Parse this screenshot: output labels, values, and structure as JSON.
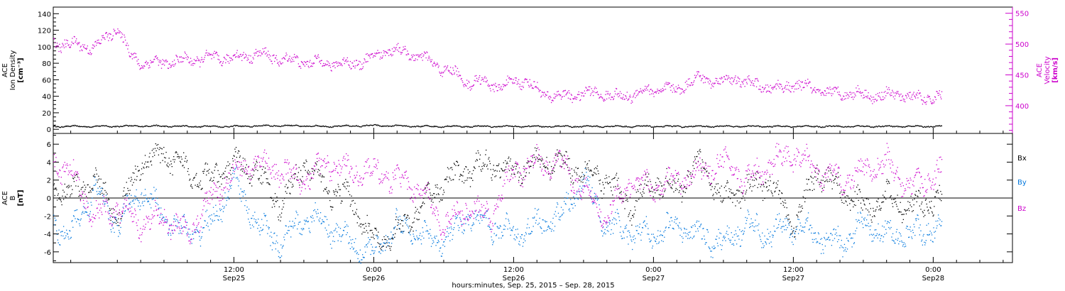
{
  "figure": {
    "xlabel": "hours:minutes, Sep. 25, 2015 – Sep. 28, 2015",
    "x_ticks": [
      {
        "hours": 12,
        "line1": "12:00",
        "line2": "Sep25"
      },
      {
        "hours": 24,
        "line1": "0:00",
        "line2": "Sep26"
      },
      {
        "hours": 36,
        "line1": "12:00",
        "line2": "Sep26"
      },
      {
        "hours": 48,
        "line1": "0:00",
        "line2": "Sep27"
      },
      {
        "hours": 60,
        "line1": "12:00",
        "line2": "Sep27"
      },
      {
        "hours": 72,
        "line1": "0:00",
        "line2": "Sep28"
      }
    ],
    "x_range_hours": [
      -3.5,
      78.8
    ],
    "colors": {
      "black": "#000000",
      "magenta": "#cc00cc",
      "blue": "#0077dd"
    }
  },
  "chart_data": [
    {
      "type": "scatter",
      "title": "",
      "x_unit": "hours from Sep 25 00:00",
      "ylim_left": [
        -5,
        148
      ],
      "ylim_right": [
        355,
        560
      ],
      "left_ticks": [
        0,
        20,
        40,
        60,
        80,
        100,
        120,
        140
      ],
      "right_ticks": [
        400,
        450,
        500,
        550
      ],
      "left_label": [
        "ACE",
        "Ion Density",
        "[cm⁻³]"
      ],
      "right_label": [
        "ACE",
        "Velocity",
        "[km/s]"
      ],
      "series": [
        {
          "axis": "left",
          "color": "#000000",
          "x": [
            -3.5,
            0,
            4,
            8,
            12,
            16,
            20,
            24,
            28,
            32,
            36,
            40,
            44,
            48,
            52,
            56,
            60,
            64,
            68,
            72.7
          ],
          "values": [
            4,
            4,
            4.5,
            4,
            4,
            5,
            4,
            5,
            4,
            4,
            4,
            4,
            4,
            4,
            4,
            4,
            4,
            4,
            4,
            4
          ]
        },
        {
          "axis": "right",
          "color": "#cc00cc",
          "x": [
            -3.5,
            -2,
            -1,
            0,
            1,
            2,
            3,
            4,
            6,
            8,
            10,
            12,
            14,
            16,
            18,
            20,
            22,
            24,
            25,
            26,
            27,
            28,
            29,
            30,
            31,
            32,
            33,
            34,
            35,
            36,
            37,
            38,
            39,
            40,
            41,
            42,
            43,
            44,
            45,
            46,
            47,
            48,
            49,
            50,
            51,
            52,
            53,
            54,
            55,
            56,
            57,
            58,
            59,
            60,
            61,
            62,
            63,
            64,
            65,
            66,
            67,
            68,
            69,
            70,
            71,
            72.7
          ],
          "values": [
            502,
            500,
            498,
            495,
            510,
            528,
            485,
            470,
            470,
            475,
            478,
            478,
            485,
            476,
            472,
            470,
            468,
            478,
            492,
            490,
            485,
            480,
            470,
            460,
            452,
            438,
            440,
            436,
            430,
            440,
            442,
            425,
            418,
            415,
            418,
            420,
            422,
            418,
            414,
            418,
            423,
            426,
            428,
            425,
            440,
            445,
            442,
            440,
            445,
            438,
            432,
            430,
            428,
            435,
            432,
            425,
            422,
            420,
            422,
            418,
            416,
            418,
            420,
            415,
            412,
            415
          ]
        }
      ]
    },
    {
      "type": "scatter",
      "title": "",
      "x_unit": "hours from Sep 25 00:00",
      "ylim": [
        -7.2,
        7.2
      ],
      "y_ticks": [
        -6,
        -4,
        -2,
        0,
        2,
        4,
        6
      ],
      "ylabel": [
        "ACE",
        "B",
        "[nT]"
      ],
      "series": [
        {
          "name": "Bx",
          "color": "#000000",
          "x": [
            -3.5,
            -2,
            0,
            2,
            4,
            6,
            8,
            10,
            12,
            14,
            16,
            18,
            20,
            22,
            24,
            26,
            28,
            30,
            32,
            34,
            36,
            38,
            40,
            42,
            44,
            46,
            48,
            50,
            52,
            54,
            56,
            58,
            60,
            62,
            64,
            66,
            68,
            70,
            72.7
          ],
          "values": [
            1,
            0.5,
            2,
            -2,
            4,
            5,
            3,
            2,
            4,
            3,
            -1,
            4,
            1,
            0,
            -5,
            -4,
            -1,
            2,
            3,
            4,
            3,
            4,
            4,
            3,
            2,
            -1,
            2,
            1,
            4,
            0,
            1,
            2,
            -3,
            3,
            1,
            -1,
            0,
            -1,
            0
          ]
        },
        {
          "name": "By",
          "color": "#0077dd",
          "x": [
            -3.5,
            -2,
            0,
            2,
            4,
            6,
            8,
            10,
            12,
            14,
            16,
            18,
            20,
            22,
            24,
            26,
            28,
            30,
            32,
            34,
            36,
            38,
            40,
            42,
            44,
            46,
            48,
            50,
            52,
            54,
            56,
            58,
            60,
            62,
            64,
            66,
            68,
            70,
            72.7
          ],
          "values": [
            -3,
            -4,
            1,
            -3,
            1,
            -2,
            -4,
            -3,
            2,
            -3,
            -5,
            -2,
            -3,
            -5,
            -6,
            -3,
            -4,
            -5,
            -2,
            -3,
            -4,
            -3,
            -2,
            2,
            -3,
            -4,
            -4,
            -3,
            -4,
            -5,
            -3,
            -4,
            -3,
            -4,
            -5,
            -3,
            -4,
            -4,
            -3
          ]
        },
        {
          "name": "Bz",
          "color": "#cc00cc",
          "x": [
            -3.5,
            -2,
            0,
            2,
            4,
            6,
            8,
            10,
            12,
            14,
            16,
            18,
            20,
            22,
            24,
            26,
            28,
            30,
            32,
            34,
            36,
            38,
            40,
            42,
            44,
            46,
            48,
            50,
            52,
            54,
            56,
            58,
            60,
            62,
            64,
            66,
            68,
            70,
            72.7
          ],
          "values": [
            4,
            3,
            -2,
            -1,
            -3,
            -2,
            -4,
            0,
            3,
            4,
            3,
            2,
            4,
            3,
            3,
            2,
            1,
            -3,
            -1,
            -2,
            3,
            4,
            4,
            1,
            -2,
            2,
            1,
            2,
            3,
            4,
            2,
            4,
            5,
            3,
            2,
            3,
            4,
            1,
            3
          ]
        }
      ]
    }
  ]
}
